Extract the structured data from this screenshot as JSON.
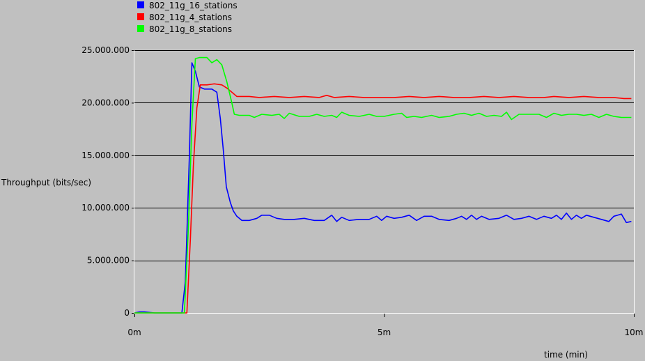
{
  "chart_data": {
    "type": "line",
    "xlabel": "time (min)",
    "ylabel": "Throughput (bits/sec)",
    "xlim": [
      0,
      10
    ],
    "ylim": [
      0,
      25000000
    ],
    "x_ticks": [
      {
        "value": 0,
        "label": "0m"
      },
      {
        "value": 5,
        "label": "5m"
      },
      {
        "value": 10,
        "label": "10m"
      }
    ],
    "y_ticks": [
      {
        "value": 0,
        "label": "0"
      },
      {
        "value": 5000000,
        "label": "5.000.000"
      },
      {
        "value": 10000000,
        "label": "10.000.000"
      },
      {
        "value": 15000000,
        "label": "15.000.000"
      },
      {
        "value": 20000000,
        "label": "20.000.000"
      },
      {
        "value": 25000000,
        "label": "25.000.000"
      }
    ],
    "grid": "horizontal",
    "legend_position": "top-left",
    "series": [
      {
        "name": "802_11g_16_stations",
        "color": "#0000ff",
        "points": [
          [
            0,
            0
          ],
          [
            0.1,
            100000
          ],
          [
            0.2,
            100000
          ],
          [
            0.4,
            0
          ],
          [
            0.6,
            0
          ],
          [
            0.8,
            0
          ],
          [
            0.95,
            0
          ],
          [
            1.02,
            3000000
          ],
          [
            1.1,
            15000000
          ],
          [
            1.15,
            23800000
          ],
          [
            1.22,
            23000000
          ],
          [
            1.3,
            21500000
          ],
          [
            1.4,
            21300000
          ],
          [
            1.55,
            21300000
          ],
          [
            1.65,
            21000000
          ],
          [
            1.72,
            18500000
          ],
          [
            1.78,
            15500000
          ],
          [
            1.84,
            12000000
          ],
          [
            1.92,
            10500000
          ],
          [
            1.98,
            9700000
          ],
          [
            2.05,
            9200000
          ],
          [
            2.15,
            8800000
          ],
          [
            2.3,
            8800000
          ],
          [
            2.45,
            9000000
          ],
          [
            2.55,
            9300000
          ],
          [
            2.7,
            9300000
          ],
          [
            2.85,
            9000000
          ],
          [
            3.0,
            8900000
          ],
          [
            3.2,
            8900000
          ],
          [
            3.4,
            9000000
          ],
          [
            3.6,
            8800000
          ],
          [
            3.8,
            8800000
          ],
          [
            3.95,
            9300000
          ],
          [
            4.05,
            8700000
          ],
          [
            4.15,
            9100000
          ],
          [
            4.3,
            8800000
          ],
          [
            4.5,
            8900000
          ],
          [
            4.7,
            8900000
          ],
          [
            4.85,
            9200000
          ],
          [
            4.95,
            8800000
          ],
          [
            5.05,
            9200000
          ],
          [
            5.2,
            9000000
          ],
          [
            5.35,
            9100000
          ],
          [
            5.5,
            9300000
          ],
          [
            5.65,
            8800000
          ],
          [
            5.8,
            9200000
          ],
          [
            5.95,
            9200000
          ],
          [
            6.1,
            8900000
          ],
          [
            6.3,
            8800000
          ],
          [
            6.45,
            9000000
          ],
          [
            6.55,
            9200000
          ],
          [
            6.65,
            8900000
          ],
          [
            6.75,
            9300000
          ],
          [
            6.85,
            8900000
          ],
          [
            6.95,
            9200000
          ],
          [
            7.1,
            8900000
          ],
          [
            7.3,
            9000000
          ],
          [
            7.45,
            9300000
          ],
          [
            7.6,
            8900000
          ],
          [
            7.75,
            9000000
          ],
          [
            7.9,
            9200000
          ],
          [
            8.05,
            8900000
          ],
          [
            8.2,
            9200000
          ],
          [
            8.35,
            9000000
          ],
          [
            8.45,
            9300000
          ],
          [
            8.55,
            8900000
          ],
          [
            8.65,
            9500000
          ],
          [
            8.75,
            8900000
          ],
          [
            8.85,
            9300000
          ],
          [
            8.95,
            9000000
          ],
          [
            9.05,
            9300000
          ],
          [
            9.2,
            9100000
          ],
          [
            9.35,
            8900000
          ],
          [
            9.5,
            8700000
          ],
          [
            9.6,
            9200000
          ],
          [
            9.75,
            9400000
          ],
          [
            9.85,
            8600000
          ],
          [
            9.95,
            8700000
          ]
        ]
      },
      {
        "name": "802_11g_4_stations",
        "color": "#ff0000",
        "points": [
          [
            0,
            0
          ],
          [
            0.2,
            0
          ],
          [
            0.4,
            0
          ],
          [
            0.6,
            0
          ],
          [
            0.8,
            0
          ],
          [
            1.05,
            0
          ],
          [
            1.12,
            7000000
          ],
          [
            1.18,
            14000000
          ],
          [
            1.25,
            19500000
          ],
          [
            1.32,
            21700000
          ],
          [
            1.45,
            21700000
          ],
          [
            1.6,
            21800000
          ],
          [
            1.75,
            21700000
          ],
          [
            1.85,
            21400000
          ],
          [
            1.95,
            21000000
          ],
          [
            2.05,
            20600000
          ],
          [
            2.3,
            20600000
          ],
          [
            2.5,
            20500000
          ],
          [
            2.8,
            20600000
          ],
          [
            3.1,
            20500000
          ],
          [
            3.4,
            20600000
          ],
          [
            3.7,
            20500000
          ],
          [
            3.85,
            20700000
          ],
          [
            4.0,
            20500000
          ],
          [
            4.3,
            20600000
          ],
          [
            4.6,
            20500000
          ],
          [
            4.9,
            20500000
          ],
          [
            5.2,
            20500000
          ],
          [
            5.5,
            20600000
          ],
          [
            5.8,
            20500000
          ],
          [
            6.1,
            20600000
          ],
          [
            6.4,
            20500000
          ],
          [
            6.7,
            20500000
          ],
          [
            7.0,
            20600000
          ],
          [
            7.3,
            20500000
          ],
          [
            7.6,
            20600000
          ],
          [
            7.9,
            20500000
          ],
          [
            8.2,
            20500000
          ],
          [
            8.4,
            20600000
          ],
          [
            8.7,
            20500000
          ],
          [
            9.0,
            20600000
          ],
          [
            9.3,
            20500000
          ],
          [
            9.6,
            20500000
          ],
          [
            9.8,
            20400000
          ],
          [
            9.95,
            20400000
          ]
        ]
      },
      {
        "name": "802_11g_8_stations",
        "color": "#00ff00",
        "points": [
          [
            0,
            0
          ],
          [
            0.2,
            0
          ],
          [
            0.4,
            0
          ],
          [
            0.6,
            0
          ],
          [
            0.8,
            0
          ],
          [
            1.0,
            0
          ],
          [
            1.08,
            8000000
          ],
          [
            1.15,
            18000000
          ],
          [
            1.22,
            24200000
          ],
          [
            1.3,
            24300000
          ],
          [
            1.45,
            24300000
          ],
          [
            1.55,
            23800000
          ],
          [
            1.65,
            24100000
          ],
          [
            1.75,
            23600000
          ],
          [
            1.85,
            22000000
          ],
          [
            1.95,
            20000000
          ],
          [
            2.0,
            18900000
          ],
          [
            2.1,
            18800000
          ],
          [
            2.3,
            18800000
          ],
          [
            2.4,
            18600000
          ],
          [
            2.55,
            18900000
          ],
          [
            2.75,
            18800000
          ],
          [
            2.9,
            18900000
          ],
          [
            3.0,
            18500000
          ],
          [
            3.1,
            19000000
          ],
          [
            3.3,
            18700000
          ],
          [
            3.5,
            18700000
          ],
          [
            3.65,
            18900000
          ],
          [
            3.8,
            18700000
          ],
          [
            3.95,
            18800000
          ],
          [
            4.05,
            18600000
          ],
          [
            4.15,
            19100000
          ],
          [
            4.3,
            18800000
          ],
          [
            4.5,
            18700000
          ],
          [
            4.7,
            18900000
          ],
          [
            4.85,
            18700000
          ],
          [
            5.0,
            18700000
          ],
          [
            5.2,
            18900000
          ],
          [
            5.35,
            19000000
          ],
          [
            5.45,
            18600000
          ],
          [
            5.6,
            18700000
          ],
          [
            5.75,
            18600000
          ],
          [
            5.95,
            18800000
          ],
          [
            6.1,
            18600000
          ],
          [
            6.3,
            18700000
          ],
          [
            6.45,
            18900000
          ],
          [
            6.6,
            19000000
          ],
          [
            6.75,
            18800000
          ],
          [
            6.9,
            19000000
          ],
          [
            7.05,
            18700000
          ],
          [
            7.2,
            18800000
          ],
          [
            7.35,
            18700000
          ],
          [
            7.45,
            19100000
          ],
          [
            7.55,
            18400000
          ],
          [
            7.7,
            18900000
          ],
          [
            7.9,
            18900000
          ],
          [
            8.1,
            18900000
          ],
          [
            8.25,
            18600000
          ],
          [
            8.4,
            19000000
          ],
          [
            8.55,
            18800000
          ],
          [
            8.7,
            18900000
          ],
          [
            8.85,
            18900000
          ],
          [
            9.0,
            18800000
          ],
          [
            9.15,
            18900000
          ],
          [
            9.3,
            18600000
          ],
          [
            9.45,
            18900000
          ],
          [
            9.6,
            18700000
          ],
          [
            9.75,
            18600000
          ],
          [
            9.95,
            18600000
          ]
        ]
      }
    ]
  }
}
